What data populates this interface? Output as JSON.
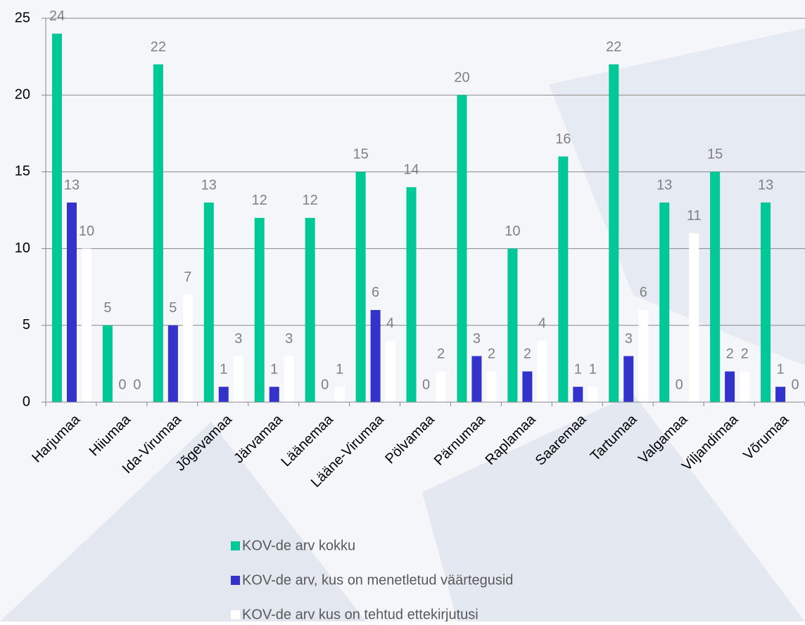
{
  "chart_data": {
    "type": "bar",
    "categories": [
      "Harjumaa",
      "Hiiumaa",
      "Ida-Virumaa",
      "Jõgevamaa",
      "Järvamaa",
      "Läänemaa",
      "Lääne-Virumaa",
      "Pölvamaa",
      "Pärnumaa",
      "Raplamaa",
      "Saaremaa",
      "Tartumaa",
      "Valgamaa",
      "Viljandimaa",
      "Võrumaa"
    ],
    "series": [
      {
        "name": "KOV-de arv kokku",
        "color": "#00c896",
        "values": [
          24,
          5,
          22,
          13,
          12,
          12,
          15,
          14,
          20,
          10,
          16,
          22,
          13,
          15,
          13
        ]
      },
      {
        "name": "KOV-de arv, kus on menetletud väärtegusid",
        "color": "#3333cc",
        "values": [
          13,
          0,
          5,
          1,
          1,
          0,
          6,
          0,
          3,
          2,
          1,
          3,
          0,
          2,
          1
        ]
      },
      {
        "name": "KOV-de arv kus on tehtud ettekirjutusi",
        "color": "#ffffff",
        "values": [
          10,
          0,
          7,
          3,
          3,
          1,
          4,
          2,
          2,
          4,
          1,
          6,
          11,
          2,
          0
        ]
      }
    ],
    "ylim": [
      0,
      25
    ],
    "yticks": [
      0,
      5,
      10,
      15,
      20,
      25
    ],
    "grid": true
  }
}
